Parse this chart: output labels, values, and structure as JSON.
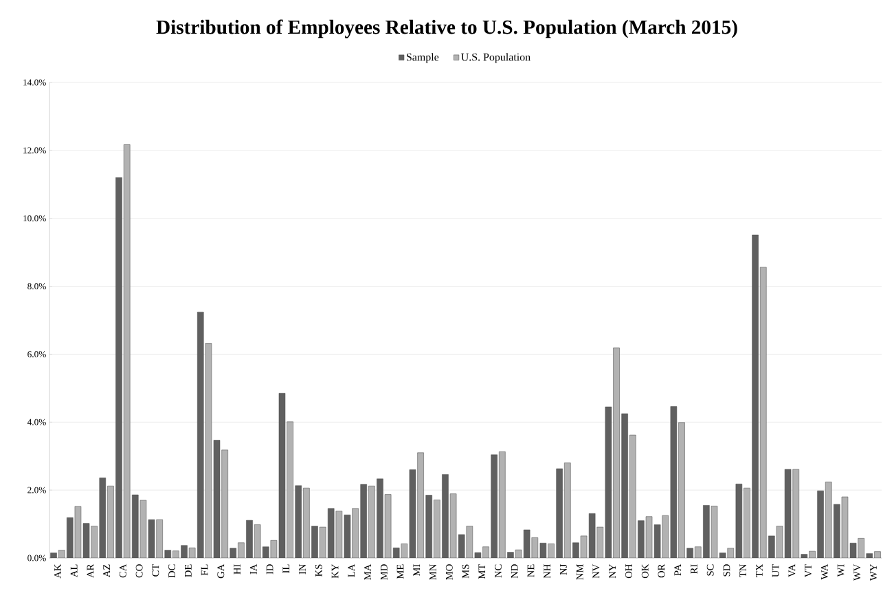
{
  "chart_data": {
    "type": "bar",
    "title": "Distribution of Employees Relative to U.S. Population (March 2015)",
    "categories": [
      "AK",
      "AL",
      "AR",
      "AZ",
      "CA",
      "CO",
      "CT",
      "DC",
      "DE",
      "FL",
      "GA",
      "HI",
      "IA",
      "ID",
      "IL",
      "IN",
      "KS",
      "KY",
      "LA",
      "MA",
      "MD",
      "ME",
      "MI",
      "MN",
      "MO",
      "MS",
      "MT",
      "NC",
      "ND",
      "NE",
      "NH",
      "NJ",
      "NM",
      "NV",
      "NY",
      "OH",
      "OK",
      "OR",
      "PA",
      "RI",
      "SC",
      "SD",
      "TN",
      "TX",
      "UT",
      "VA",
      "VT",
      "WA",
      "WI",
      "WV",
      "WY"
    ],
    "series": [
      {
        "name": "Sample",
        "color": "#606060",
        "values": [
          0.15,
          1.19,
          1.02,
          2.36,
          11.2,
          1.86,
          1.13,
          0.23,
          0.37,
          7.24,
          3.47,
          0.29,
          1.11,
          0.33,
          4.85,
          2.13,
          0.94,
          1.46,
          1.27,
          2.17,
          2.33,
          0.3,
          2.6,
          1.85,
          2.46,
          0.69,
          0.16,
          3.04,
          0.17,
          0.83,
          0.44,
          2.63,
          0.45,
          1.31,
          4.45,
          4.25,
          1.1,
          0.98,
          4.46,
          0.29,
          1.55,
          0.15,
          2.18,
          9.51,
          0.65,
          2.61,
          0.11,
          1.98,
          1.58,
          0.44,
          0.13
        ]
      },
      {
        "name": "U.S. Population",
        "color": "#b2b2b2",
        "values": [
          0.23,
          1.52,
          0.94,
          2.12,
          12.17,
          1.7,
          1.13,
          0.21,
          0.3,
          6.32,
          3.18,
          0.45,
          0.98,
          0.52,
          4.01,
          2.06,
          0.91,
          1.38,
          1.46,
          2.12,
          1.87,
          0.42,
          3.1,
          1.71,
          1.89,
          0.94,
          0.33,
          3.13,
          0.24,
          0.6,
          0.42,
          2.8,
          0.65,
          0.91,
          6.19,
          3.62,
          1.22,
          1.25,
          3.99,
          0.33,
          1.53,
          0.29,
          2.06,
          8.56,
          0.94,
          2.61,
          0.2,
          2.24,
          1.8,
          0.58,
          0.19
        ]
      }
    ],
    "ylim": [
      0,
      14
    ],
    "yticks": [
      {
        "value": 0,
        "label": "0.0%"
      },
      {
        "value": 2,
        "label": "2.0%"
      },
      {
        "value": 4,
        "label": "4.0%"
      },
      {
        "value": 6,
        "label": "6.0%"
      },
      {
        "value": 8,
        "label": "8.0%"
      },
      {
        "value": 10,
        "label": "10.0%"
      },
      {
        "value": 12,
        "label": "12.0%"
      },
      {
        "value": 14,
        "label": "14.0%"
      }
    ],
    "grid": "y",
    "legend": "top"
  }
}
